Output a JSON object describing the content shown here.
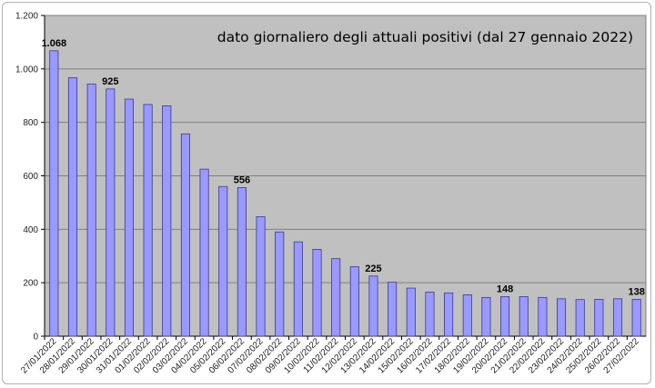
{
  "chart_data": {
    "type": "bar",
    "title": "dato giornaliero degli attuali positivi (dal 27 gennaio 2022)",
    "xlabel": "",
    "ylabel": "",
    "ylim": [
      0,
      1200
    ],
    "yticks": [
      0,
      200,
      400,
      600,
      800,
      1000,
      1200
    ],
    "ytick_labels": [
      "0",
      "200",
      "400",
      "600",
      "800",
      "1.000",
      "1.200"
    ],
    "grid": true,
    "colors": {
      "bar": "#9999ff",
      "bar_border": "#3a3a8a",
      "plot_bg": "#c0c0c0",
      "grid": "#808080"
    },
    "categories": [
      "27/01/2022",
      "28/01/2022",
      "29/01/2022",
      "30/01/2022",
      "31/01/2022",
      "01/02/2022",
      "02/02/2022",
      "03/02/2022",
      "04/02/2022",
      "05/02/2022",
      "06/02/2022",
      "07/02/2022",
      "08/02/2022",
      "09/02/2022",
      "10/02/2022",
      "11/02/2022",
      "12/02/2022",
      "13/02/2022",
      "14/02/2022",
      "15/02/2022",
      "16/02/2022",
      "17/02/2022",
      "18/02/2022",
      "19/02/2022",
      "20/02/2022",
      "21/02/2022",
      "22/02/2022",
      "23/02/2022",
      "24/02/2022",
      "25/02/2022",
      "26/02/2022",
      "27/02/2022"
    ],
    "values": [
      1068,
      967,
      943,
      925,
      887,
      867,
      862,
      757,
      625,
      560,
      556,
      447,
      390,
      353,
      325,
      290,
      260,
      225,
      202,
      180,
      165,
      162,
      155,
      145,
      148,
      148,
      145,
      140,
      137,
      138,
      140,
      138
    ],
    "data_labels": [
      {
        "index": 0,
        "text": "1.068"
      },
      {
        "index": 3,
        "text": "925"
      },
      {
        "index": 10,
        "text": "556"
      },
      {
        "index": 17,
        "text": "225"
      },
      {
        "index": 24,
        "text": "148"
      },
      {
        "index": 31,
        "text": "138"
      }
    ]
  }
}
